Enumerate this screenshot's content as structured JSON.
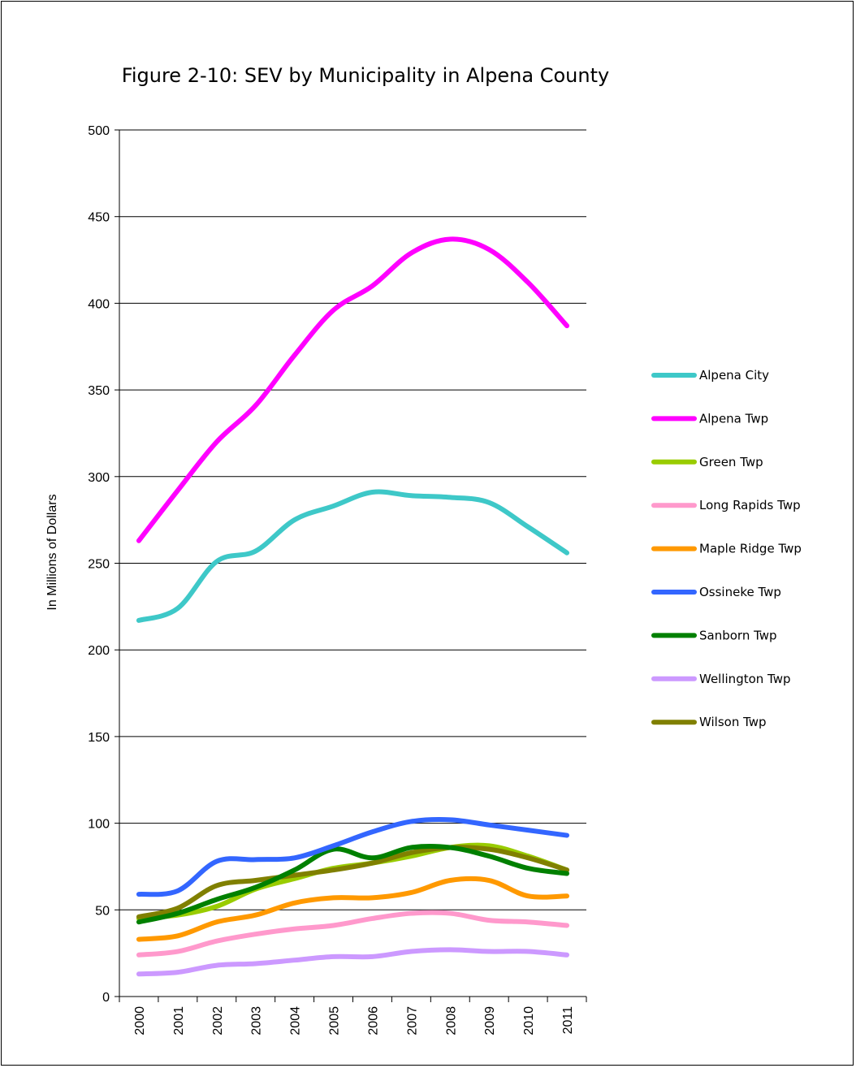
{
  "chart_data": {
    "type": "line",
    "title": "Figure 2-10:  SEV by Municipality in Alpena County",
    "ylabel": "In Millions of Dollars",
    "xlabel": "",
    "ylim": [
      0,
      500
    ],
    "yticks": [
      0,
      50,
      100,
      150,
      200,
      250,
      300,
      350,
      400,
      450,
      500
    ],
    "grid": true,
    "legend_position": "right",
    "categories": [
      "2000",
      "2001",
      "2002",
      "2003",
      "2004",
      "2005",
      "2006",
      "2007",
      "2008",
      "2009",
      "2010",
      "2011"
    ],
    "series": [
      {
        "name": "Alpena City",
        "color": "#3ec8c8",
        "values": [
          217,
          224,
          251,
          257,
          275,
          283,
          291,
          289,
          288,
          285,
          271,
          256
        ]
      },
      {
        "name": "Alpena Twp",
        "color": "#ff00ff",
        "values": [
          263,
          292,
          320,
          341,
          370,
          396,
          410,
          429,
          437,
          431,
          412,
          387
        ]
      },
      {
        "name": "Green Twp",
        "color": "#99cc00",
        "values": [
          45,
          47,
          52,
          62,
          68,
          74,
          77,
          81,
          86,
          87,
          81,
          73
        ]
      },
      {
        "name": "Long Rapids Twp",
        "color": "#ff99cc",
        "values": [
          24,
          26,
          32,
          36,
          39,
          41,
          45,
          48,
          48,
          44,
          43,
          41
        ]
      },
      {
        "name": "Maple Ridge Twp",
        "color": "#ff9900",
        "values": [
          33,
          35,
          43,
          47,
          54,
          57,
          57,
          60,
          67,
          67,
          58,
          58
        ]
      },
      {
        "name": "Ossineke Twp",
        "color": "#3366ff",
        "values": [
          59,
          61,
          78,
          79,
          80,
          87,
          95,
          101,
          102,
          99,
          96,
          93
        ]
      },
      {
        "name": "Sanborn Twp",
        "color": "#008000",
        "values": [
          43,
          48,
          56,
          63,
          73,
          85,
          80,
          86,
          86,
          81,
          74,
          71
        ]
      },
      {
        "name": "Wellington Twp",
        "color": "#cc99ff",
        "values": [
          13,
          14,
          18,
          19,
          21,
          23,
          23,
          26,
          27,
          26,
          26,
          24
        ]
      },
      {
        "name": "Wilson Twp",
        "color": "#808000",
        "values": [
          46,
          51,
          64,
          67,
          70,
          73,
          77,
          83,
          86,
          85,
          80,
          73
        ]
      }
    ]
  }
}
